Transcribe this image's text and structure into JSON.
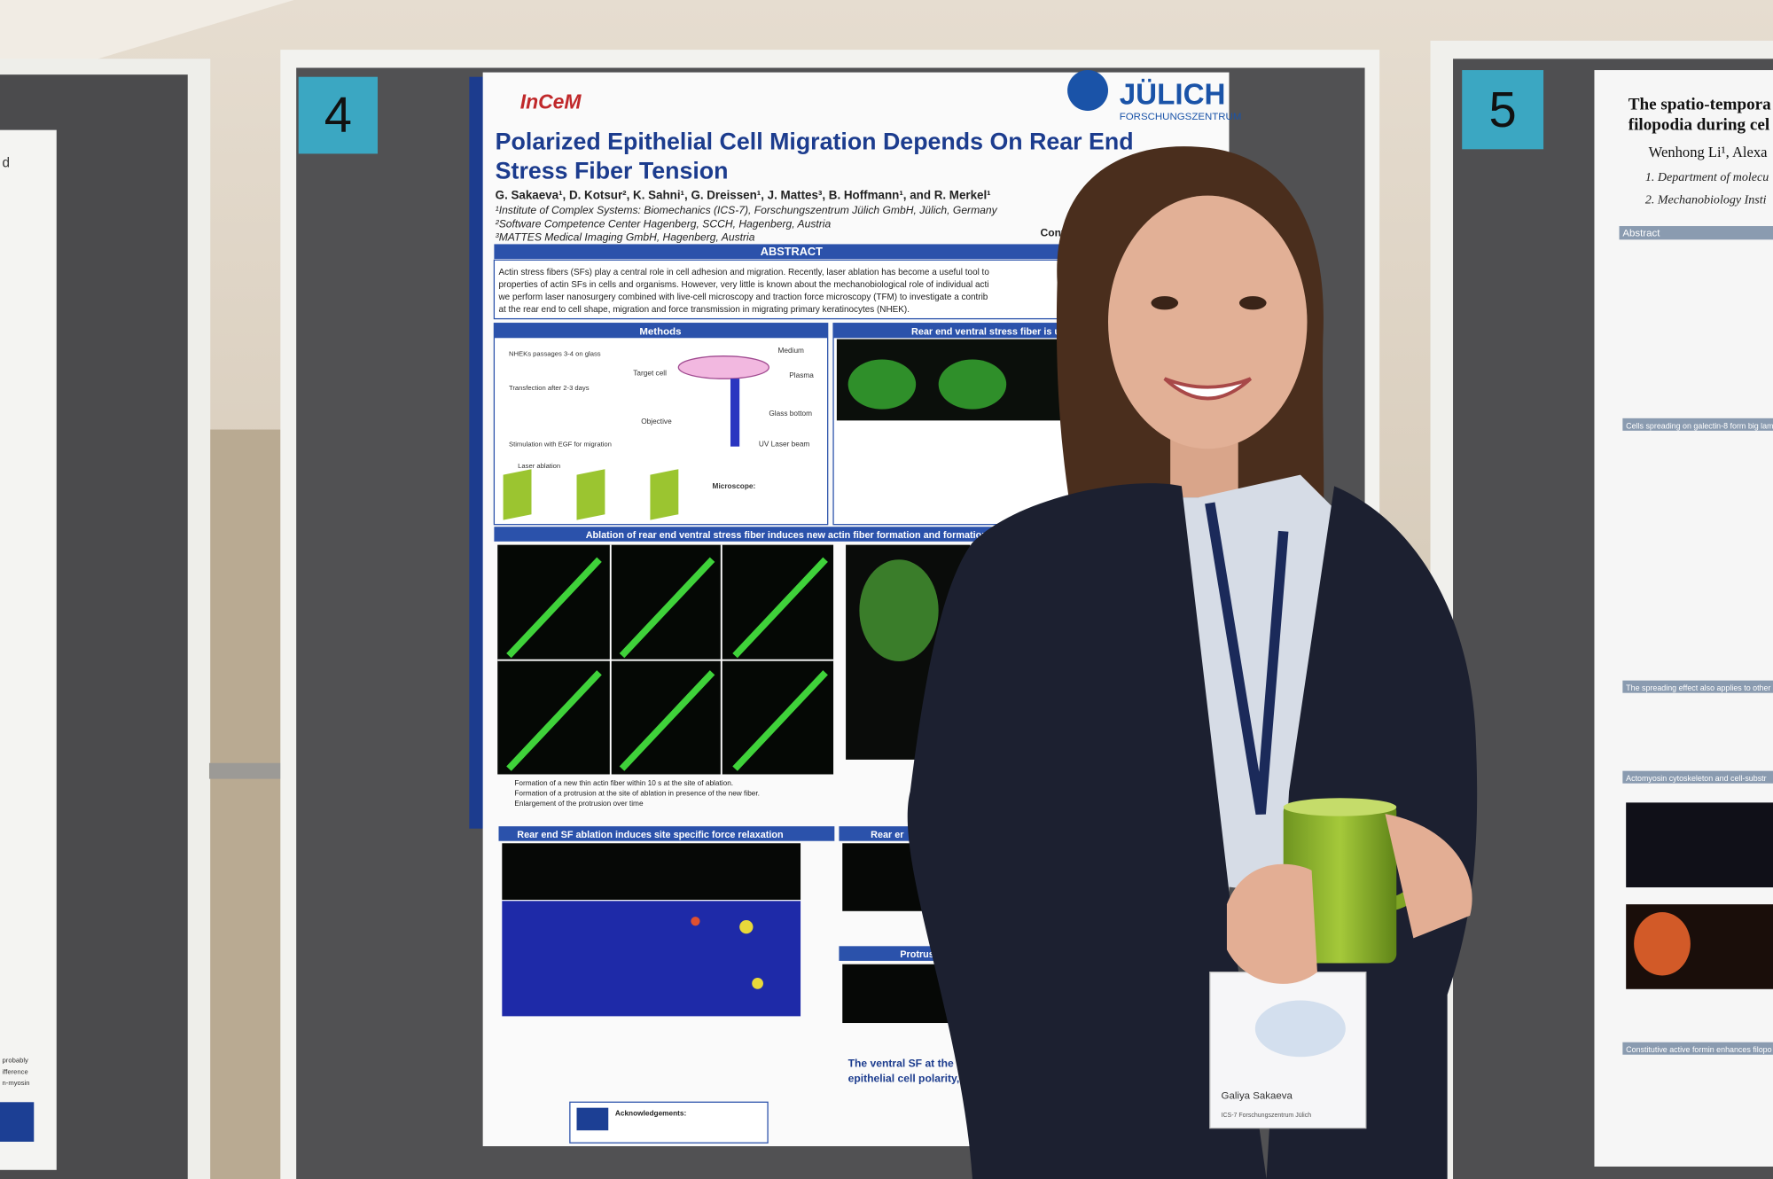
{
  "scene": {
    "board_left": {
      "poster_fragments": [
        "d",
        "probably",
        "ifference",
        "n-myosin"
      ]
    },
    "board_center": {
      "number": "4",
      "poster": {
        "logo_left": "InCeM",
        "logo_right": "JÜLICH",
        "logo_right_sub": "FORSCHUNGSZENTRUM",
        "title_lines": [
          "Polarized Epithelial Cell Migration Depends On Rear End",
          "Stress Fiber Tension"
        ],
        "authors": "G. Sakaeva¹, D. Kotsur², K. Sahni¹, G. Dreissen¹, J. Mattes³, B. Hoffmann¹, and R. Merkel¹",
        "affiliations": [
          "¹Institute of Complex Systems: Biomechanics (ICS-7), Forschungszentrum Jülich GmbH, Jülich, Germany",
          "²Software Competence Center Hagenberg, SCCH, Hagenberg, Austria",
          "³MATTES Medical Imaging GmbH, Hagenberg, Austria"
        ],
        "contact": "Contact:",
        "abstract_header": "ABSTRACT",
        "abstract_lines": [
          "Actin stress fibers (SFs) play a central role in cell adhesion and migration. Recently, laser ablation has become a useful tool to",
          "properties of actin SFs in cells and organisms. However, very little is known about the mechanobiological role of individual acti",
          "we perform laser nanosurgery combined with live-cell microscopy and traction force microscopy (TFM) to investigate a contrib",
          "at the rear end to cell shape, migration and force transmission in migrating primary keratinocytes (NHEK)."
        ],
        "sections": [
          "Methods",
          "Rear end ventral stress fiber is und",
          "Ablation of rear end ventral stress fiber induces new actin fiber formation and formation of l",
          "Rear end SF ablation induces site specific force relaxation",
          "Rear er",
          "Protrusion formation is indep"
        ],
        "methods_labels": [
          "NHEKs passages 3-4 on glass",
          "Target cell",
          "Medium",
          "Plasma",
          "Transfection after 2-3 days",
          "Objective",
          "Glass bottom",
          "Stimulation with EGF for migration",
          "UV Laser beam",
          "Laser ablation",
          "Microscope:"
        ],
        "bullets": [
          "Formation of a new thin actin fiber within 10 s at the site of ablation.",
          "Formation of a protrusion at the site of ablation in presence of the new fiber.",
          "Enlargement of the protrusion over time"
        ],
        "conclusion_lines": [
          "The ventral SF at the rear",
          "epithelial cell polarity, su"
        ],
        "acknowledgements": "Acknowledgements:"
      }
    },
    "board_right": {
      "number": "5",
      "poster": {
        "title_lines": [
          "The spatio-tempora",
          "filopodia during cel"
        ],
        "authors": "Wenhong Li¹, Alexa",
        "affiliations": [
          "1. Department of molecu",
          "2. Mechanobiology Insti"
        ],
        "sections": [
          "Abstract",
          "Cells spreading on galectin-8 form big lam",
          "The spreading effect also applies to other",
          "Actomyosin cytoskeleton and cell-substr",
          "Constitutive active formin enhances filopo"
        ]
      }
    },
    "badge": {
      "name": "Galiya Sakaeva",
      "org": "ICS-7 Forschungszentrum Jülich"
    }
  }
}
